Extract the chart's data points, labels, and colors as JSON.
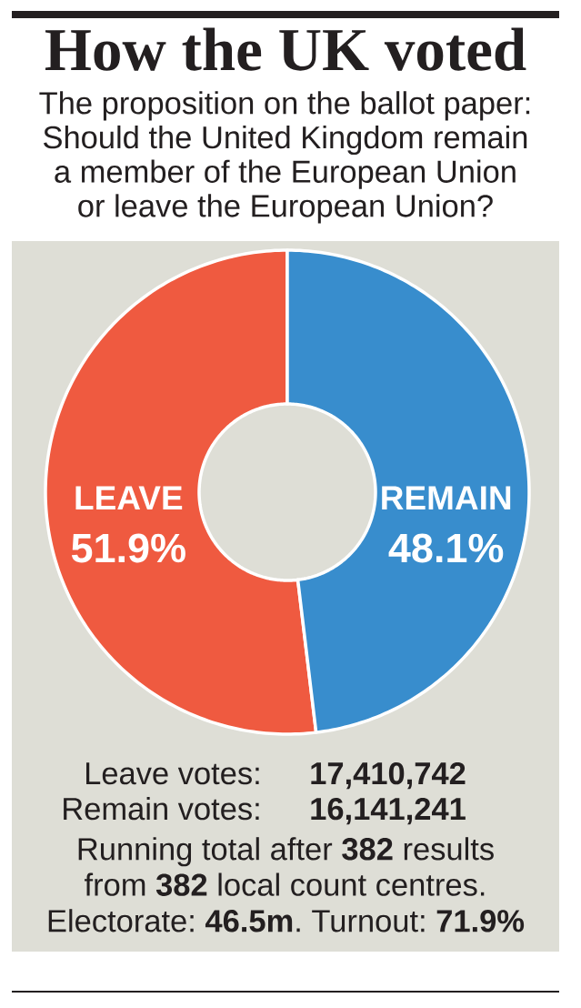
{
  "chart_data": {
    "type": "donut",
    "title": "How the UK voted",
    "subtitle": "The proposition on the ballot paper: Should the United Kingdom remain a member of the European Union or leave the European Union?",
    "categories": [
      "LEAVE",
      "REMAIN"
    ],
    "values": [
      51.9,
      48.1
    ],
    "colors": [
      "#ef5a40",
      "#388dcd"
    ],
    "value_labels": [
      "51.9%",
      "48.1%"
    ],
    "annotations": [
      "Leave votes:",
      "17,410,742",
      "Remain votes:",
      "16,141,241",
      "Running total after **382** results from **382** local count centres.",
      "Electorate: **46.5m**. Turnout: **71.9%**"
    ]
  }
}
